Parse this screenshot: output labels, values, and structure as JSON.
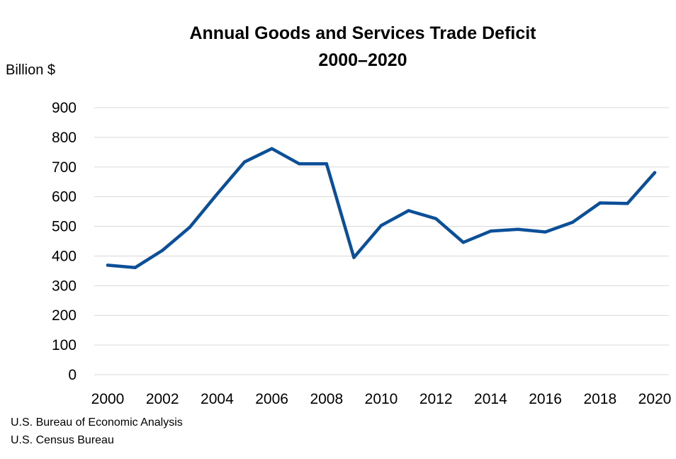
{
  "chart_data": {
    "type": "line",
    "title": "Annual Goods and Services Trade Deficit",
    "subtitle": "2000–2020",
    "ylabel": "Billion $",
    "xlabel": "",
    "ylim": [
      0,
      900
    ],
    "yticks": [
      0,
      100,
      200,
      300,
      400,
      500,
      600,
      700,
      800,
      900
    ],
    "xlim": [
      2000,
      2020
    ],
    "xticks": [
      2000,
      2002,
      2004,
      2006,
      2008,
      2010,
      2012,
      2014,
      2016,
      2018,
      2020
    ],
    "grid": true,
    "line_color": "#0b4f99",
    "grid_color": "#d9d9d9",
    "x": [
      2000,
      2001,
      2002,
      2003,
      2004,
      2005,
      2006,
      2007,
      2008,
      2009,
      2010,
      2011,
      2012,
      2013,
      2014,
      2015,
      2016,
      2017,
      2018,
      2019,
      2020
    ],
    "series": [
      {
        "values": [
          369,
          361,
          419,
          497,
          609,
          717,
          762,
          711,
          711,
          395,
          503,
          553,
          526,
          446,
          484,
          490,
          481,
          514,
          579,
          577,
          681
        ]
      }
    ]
  },
  "sources": [
    "U.S. Bureau of Economic Analysis",
    "U.S. Census Bureau"
  ]
}
